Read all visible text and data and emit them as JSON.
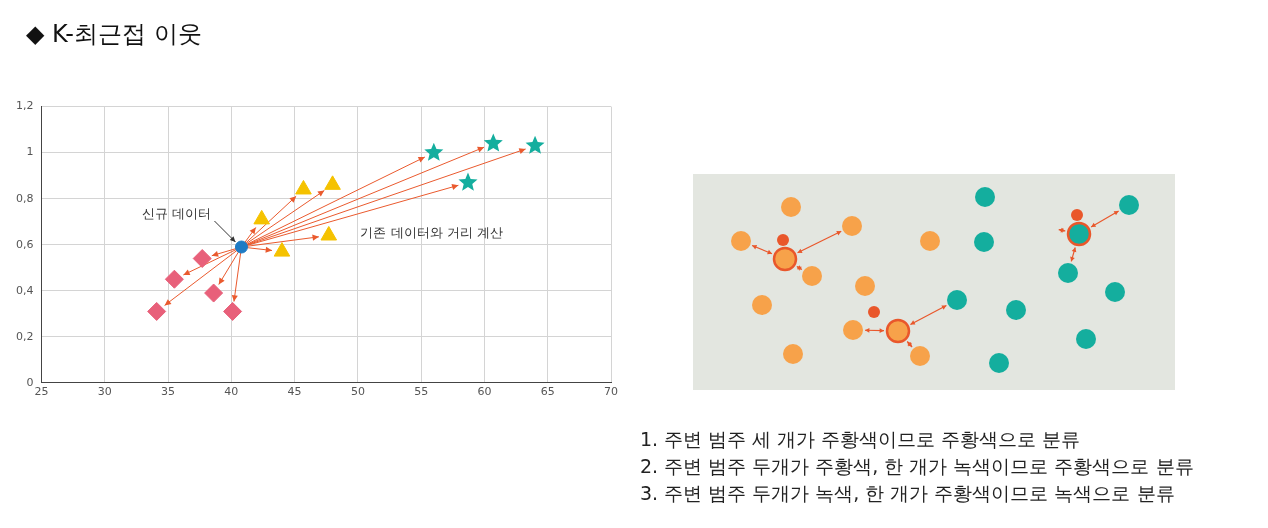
{
  "chart_data": {
    "type": "scatter",
    "title": "◆ K-최근접 이웃",
    "series": [
      {
        "color": "#1f7bc4",
        "marker": "circle",
        "x": [
          40.8
        ],
        "values": [
          0.59
        ]
      },
      {
        "color": "#e8607a",
        "marker": "diamond",
        "x": [
          34.1,
          35.5,
          37.7,
          38.6,
          40.1
        ],
        "values": [
          0.31,
          0.45,
          0.54,
          0.39,
          0.31
        ]
      },
      {
        "color": "#f5c200",
        "marker": "triangle",
        "x": [
          42.4,
          44.0,
          45.7,
          48.0,
          47.7
        ],
        "values": [
          0.71,
          0.57,
          0.84,
          0.86,
          0.64
        ]
      },
      {
        "color": "#14ae9e",
        "marker": "star",
        "x": [
          56.0,
          60.7,
          64.0,
          58.7
        ],
        "values": [
          1.0,
          1.04,
          1.03,
          0.87
        ]
      }
    ],
    "xlim": [
      25,
      70
    ],
    "xticks": [
      25,
      30,
      35,
      40,
      45,
      50,
      55,
      60,
      65,
      70
    ],
    "ylim": [
      0,
      1.2
    ],
    "yticks": [
      {
        "value": 0,
        "label": "0"
      },
      {
        "value": 0.2,
        "label": "0,2"
      },
      {
        "value": 0.4,
        "label": "0,4"
      },
      {
        "value": 0.6,
        "label": "0,6"
      },
      {
        "value": 0.8,
        "label": "0,8"
      },
      {
        "value": 1,
        "label": "1"
      },
      {
        "value": 1.2,
        "label": "1,2"
      }
    ],
    "grid": true,
    "legend": false,
    "annotations": [
      {
        "text": "신규 데이터",
        "x": 40.8,
        "y": 0.59
      },
      "기존 데이터와 거리 계산",
      "1.  주변 범주 세 개가 주황색이므로 주황색으로 분류",
      "2.  주변 범주 두개가 주황색, 한 개가 녹색이므로 주황색으로 분류",
      "3.  주변 범주 두개가 녹색, 한 개가 주황색이므로 녹색으로 분류"
    ]
  }
}
